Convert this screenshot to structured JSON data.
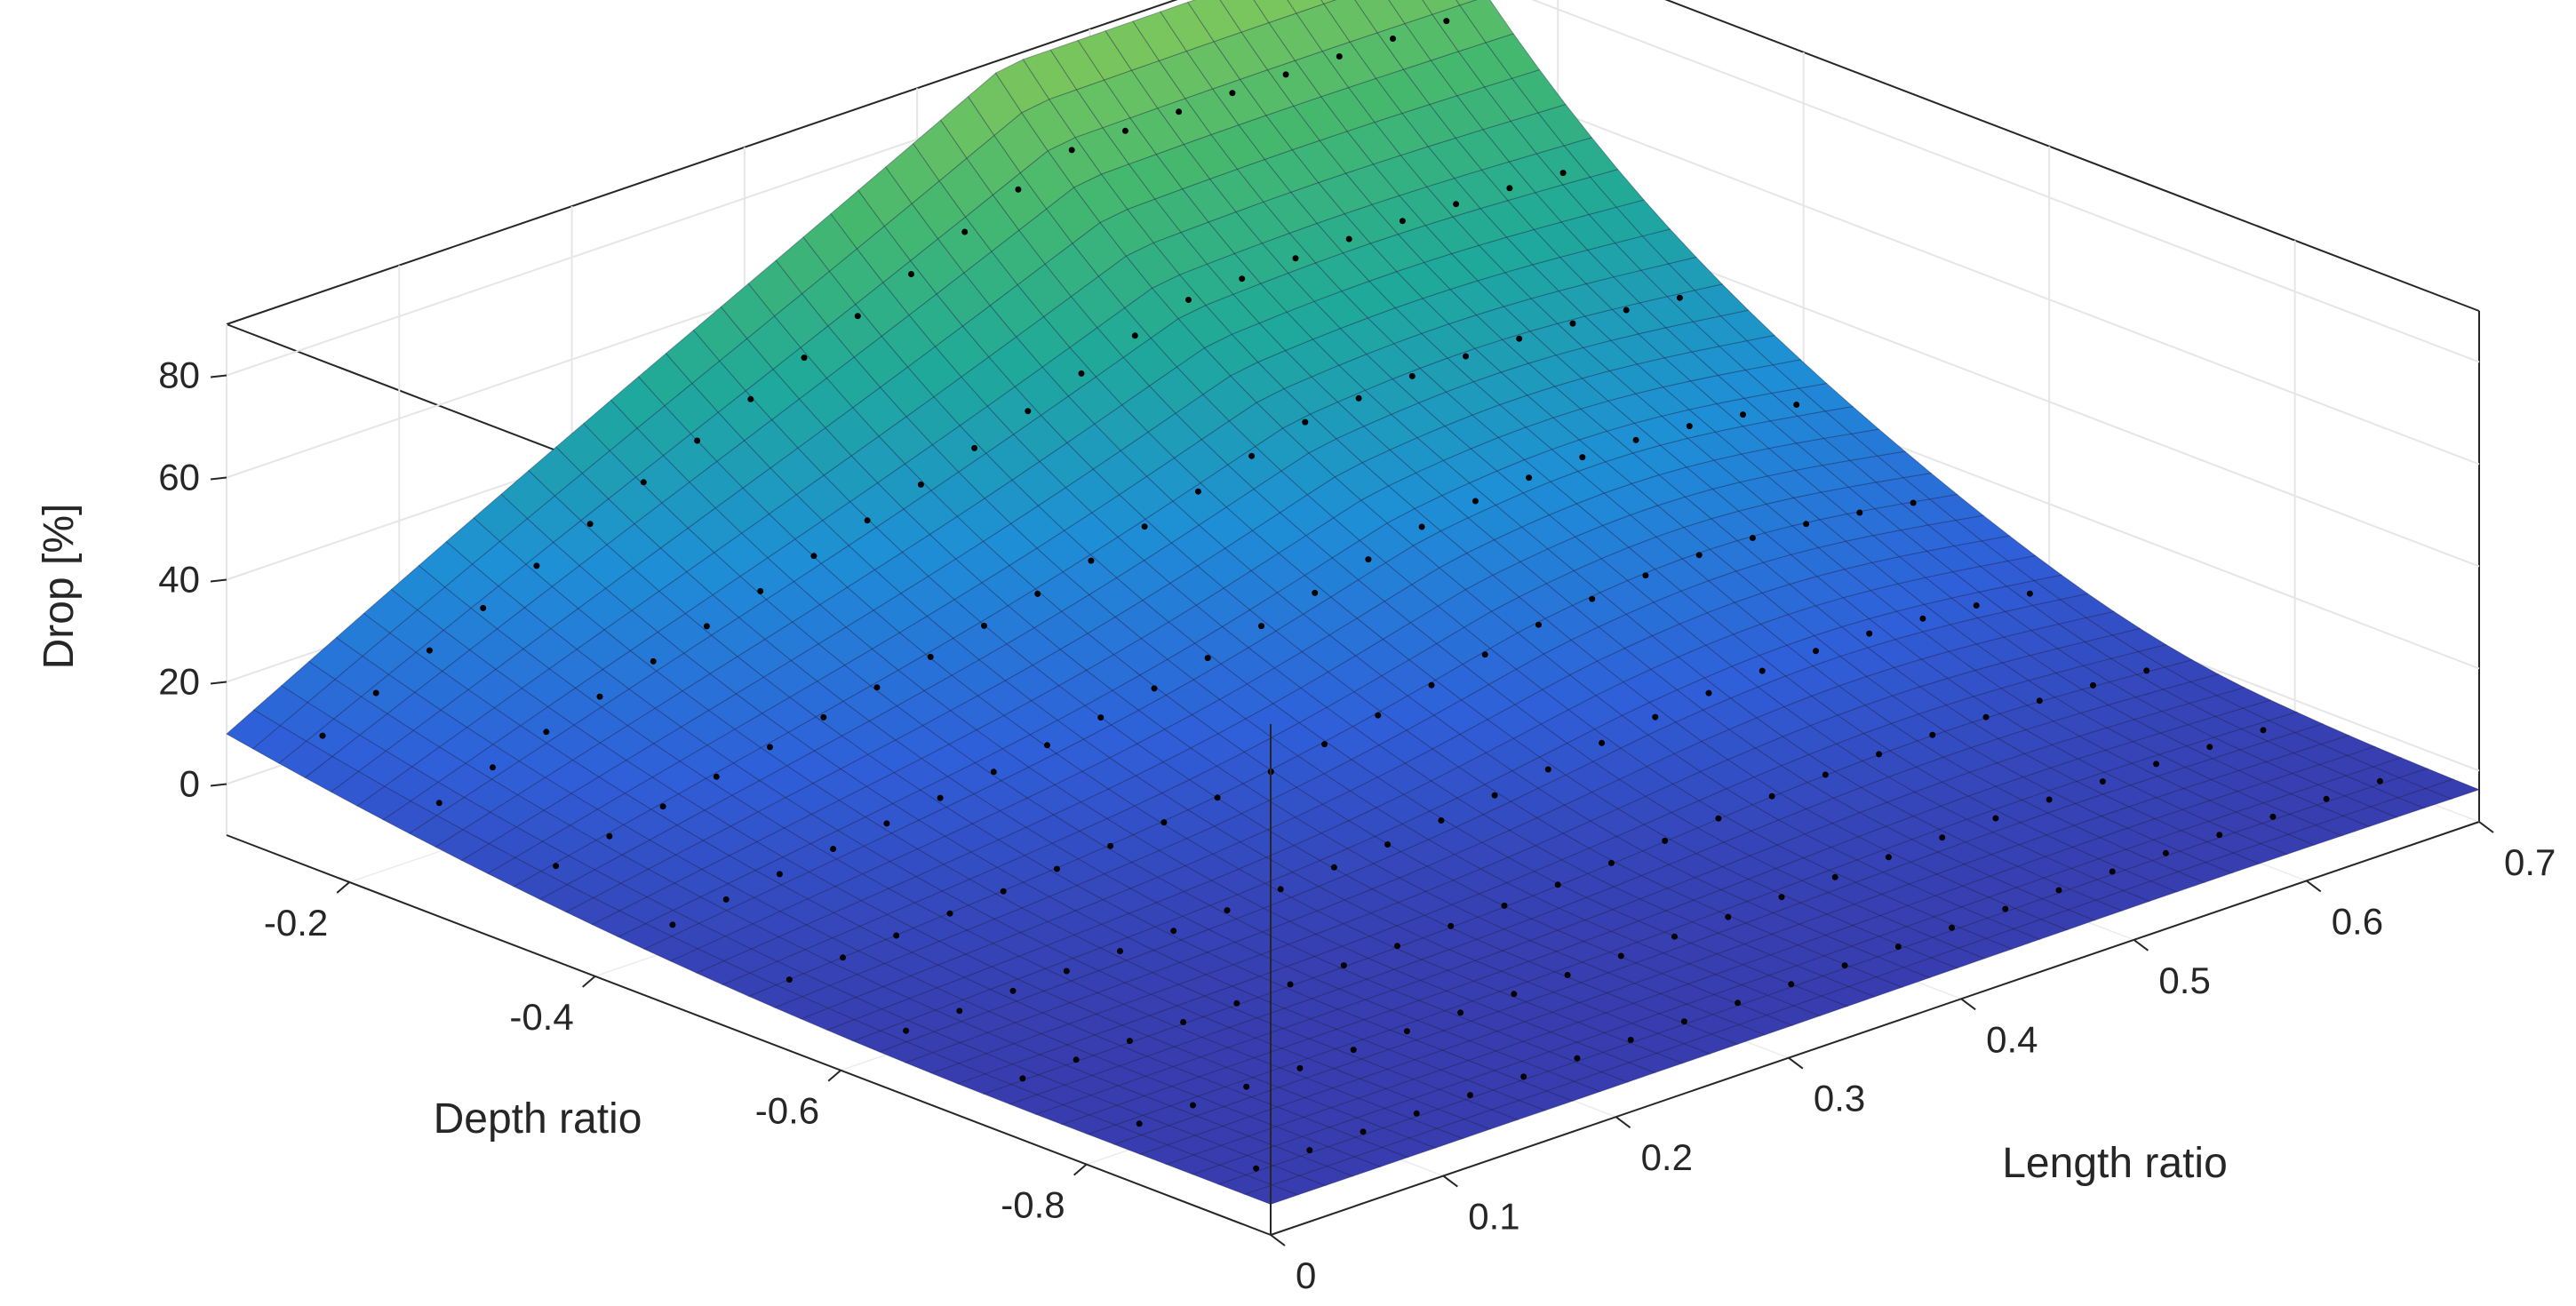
{
  "chart_data": {
    "type": "surface3d",
    "xlabel": "Length ratio",
    "ylabel": "Depth ratio",
    "zlabel": "Drop [%]",
    "xlim": [
      0,
      0.7
    ],
    "ylim": [
      -0.95,
      -0.1
    ],
    "zlim": [
      -10,
      90
    ],
    "xticks": [
      "0",
      "0.1",
      "0.2",
      "0.3",
      "0.4",
      "0.5",
      "0.6",
      "0.7"
    ],
    "yticks": [
      "-0.2",
      "-0.4",
      "-0.6",
      "-0.8"
    ],
    "zticks": [
      "0",
      "20",
      "40",
      "60",
      "80"
    ],
    "grid": true,
    "colormap": [
      "#3b2e9c",
      "#2f5fd9",
      "#1e8fd6",
      "#1fa99a",
      "#46b86e",
      "#86c85a"
    ],
    "surface_points": [
      {
        "depth_ratio": -0.1,
        "length_ratio": 0.0,
        "drop": -3
      },
      {
        "depth_ratio": -0.1,
        "length_ratio": 0.25,
        "drop": 38
      },
      {
        "depth_ratio": -0.1,
        "length_ratio": 0.5,
        "drop": 85
      },
      {
        "depth_ratio": -0.1,
        "length_ratio": 0.7,
        "drop": 90
      },
      {
        "depth_ratio": -0.3,
        "length_ratio": 0.35,
        "drop": 40
      },
      {
        "depth_ratio": -0.4,
        "length_ratio": 0.7,
        "drop": 20
      },
      {
        "depth_ratio": -0.5,
        "length_ratio": 0.35,
        "drop": 8
      },
      {
        "depth_ratio": -0.7,
        "length_ratio": 0.5,
        "drop": 2
      },
      {
        "depth_ratio": -0.95,
        "length_ratio": 0.0,
        "drop": -5
      },
      {
        "depth_ratio": -0.95,
        "length_ratio": 0.7,
        "drop": 0
      }
    ],
    "data_point_color": "#000000"
  }
}
